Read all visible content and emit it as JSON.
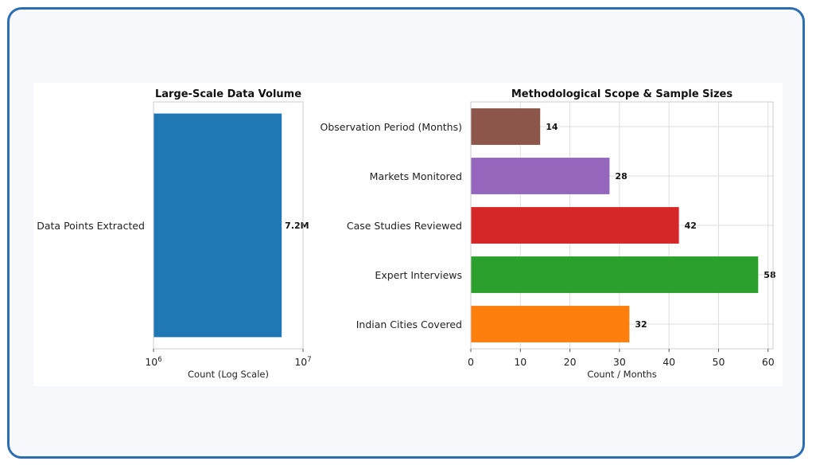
{
  "chart_data": [
    {
      "type": "bar",
      "orientation": "horizontal",
      "title": "Large-Scale Data Volume",
      "xlabel": "Count (Log Scale)",
      "x_scale": "log",
      "xlim": [
        1000000,
        10000000
      ],
      "x_tick_labels": [
        {
          "base": "10",
          "exp": "6"
        },
        {
          "base": "10",
          "exp": "7"
        }
      ],
      "categories": [
        "Data Points Extracted"
      ],
      "values": [
        7200000
      ],
      "data_labels": [
        "7.2M"
      ],
      "colors": [
        "#1f77b4"
      ],
      "grid": false
    },
    {
      "type": "bar",
      "orientation": "horizontal",
      "title": "Methodological Scope & Sample Sizes",
      "xlabel": "Count / Months",
      "xlim": [
        0,
        61
      ],
      "x_ticks": [
        0,
        10,
        20,
        30,
        40,
        50,
        60
      ],
      "categories": [
        "Observation Period (Months)",
        "Markets Monitored",
        "Case Studies Reviewed",
        "Expert Interviews",
        "Indian Cities Covered"
      ],
      "values": [
        14,
        28,
        42,
        58,
        32
      ],
      "data_labels": [
        "14",
        "28",
        "42",
        "58",
        "32"
      ],
      "colors": [
        "#8c564b",
        "#9467bd",
        "#d62728",
        "#2ca02c",
        "#ff7f0e"
      ],
      "grid": true
    }
  ]
}
